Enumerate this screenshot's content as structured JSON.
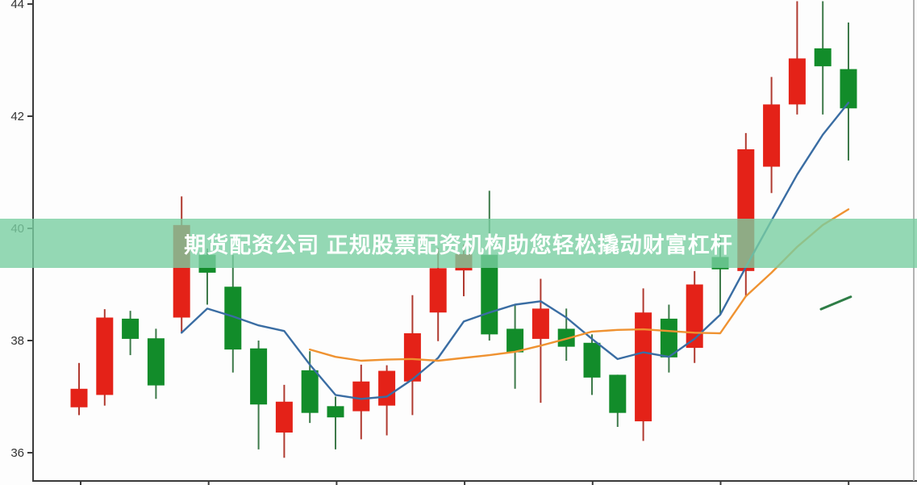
{
  "banner": {
    "text": "期货配资公司 正规股票配资机构助您轻松撬动财富杠杆",
    "bg_color": "rgba(121,206,161,0.8)",
    "text_color": "#ffffff"
  },
  "chart_data": {
    "type": "candlestick",
    "title": "",
    "xlabel": "",
    "ylabel": "",
    "y_axis": {
      "tick_labels": [
        "44",
        "42",
        "40",
        "38",
        "36"
      ],
      "tick_values": [
        44,
        42,
        40,
        38,
        36
      ],
      "range": [
        35.45,
        44.07
      ],
      "grid": false
    },
    "x_axis": {
      "tick_count": 7,
      "labels_visible": false
    },
    "legend": "none",
    "colors": {
      "bullish": "#e42218",
      "bearish": "#128c2a",
      "bullish_wick": "#b03a30",
      "bearish_wick": "#3e7a4a",
      "ma_blue": "#3a6da3",
      "ma_orange": "#ef9231",
      "segment_green": "#2e7d46",
      "axis": "#3a3a3a",
      "right_spine": "#b3b3b3"
    },
    "candles": [
      {
        "o": 36.81,
        "h": 37.6,
        "l": 36.67,
        "c": 37.14,
        "dir": "up"
      },
      {
        "o": 37.03,
        "h": 38.56,
        "l": 36.84,
        "c": 38.41,
        "dir": "up"
      },
      {
        "o": 38.39,
        "h": 38.53,
        "l": 37.74,
        "c": 38.03,
        "dir": "down"
      },
      {
        "o": 38.04,
        "h": 38.21,
        "l": 36.96,
        "c": 37.2,
        "dir": "down"
      },
      {
        "o": 38.41,
        "h": 40.57,
        "l": 38.14,
        "c": 40.06,
        "dir": "up"
      },
      {
        "o": 39.53,
        "h": 39.64,
        "l": 38.64,
        "c": 39.21,
        "dir": "down"
      },
      {
        "o": 38.96,
        "h": 39.53,
        "l": 37.43,
        "c": 37.84,
        "dir": "down"
      },
      {
        "o": 37.86,
        "h": 38.0,
        "l": 36.06,
        "c": 36.86,
        "dir": "down"
      },
      {
        "o": 36.36,
        "h": 37.21,
        "l": 35.91,
        "c": 36.91,
        "dir": "up"
      },
      {
        "o": 37.47,
        "h": 37.81,
        "l": 36.53,
        "c": 36.71,
        "dir": "down"
      },
      {
        "o": 36.83,
        "h": 37.0,
        "l": 36.06,
        "c": 36.63,
        "dir": "down"
      },
      {
        "o": 36.74,
        "h": 37.57,
        "l": 36.24,
        "c": 37.27,
        "dir": "up"
      },
      {
        "o": 36.84,
        "h": 37.56,
        "l": 36.31,
        "c": 37.46,
        "dir": "up"
      },
      {
        "o": 37.27,
        "h": 38.81,
        "l": 36.67,
        "c": 38.13,
        "dir": "up"
      },
      {
        "o": 38.5,
        "h": 39.65,
        "l": 37.99,
        "c": 39.29,
        "dir": "up"
      },
      {
        "o": 39.25,
        "h": 39.71,
        "l": 38.79,
        "c": 39.54,
        "dir": "up"
      },
      {
        "o": 39.53,
        "h": 40.67,
        "l": 38.0,
        "c": 38.11,
        "dir": "down"
      },
      {
        "o": 38.21,
        "h": 38.64,
        "l": 37.14,
        "c": 37.79,
        "dir": "down"
      },
      {
        "o": 38.03,
        "h": 39.1,
        "l": 36.89,
        "c": 38.57,
        "dir": "up"
      },
      {
        "o": 38.21,
        "h": 38.57,
        "l": 37.64,
        "c": 37.89,
        "dir": "down"
      },
      {
        "o": 37.96,
        "h": 38.11,
        "l": 37.03,
        "c": 37.34,
        "dir": "down"
      },
      {
        "o": 37.39,
        "h": 37.39,
        "l": 36.46,
        "c": 36.71,
        "dir": "down"
      },
      {
        "o": 36.56,
        "h": 38.93,
        "l": 36.21,
        "c": 38.5,
        "dir": "up"
      },
      {
        "o": 38.39,
        "h": 38.64,
        "l": 37.43,
        "c": 37.7,
        "dir": "down"
      },
      {
        "o": 37.87,
        "h": 39.24,
        "l": 37.6,
        "c": 39.0,
        "dir": "up"
      },
      {
        "o": 39.49,
        "h": 39.86,
        "l": 38.46,
        "c": 39.27,
        "dir": "down"
      },
      {
        "o": 39.24,
        "h": 41.7,
        "l": 38.79,
        "c": 41.41,
        "dir": "up"
      },
      {
        "o": 41.1,
        "h": 42.7,
        "l": 40.63,
        "c": 42.21,
        "dir": "up"
      },
      {
        "o": 42.21,
        "h": 44.05,
        "l": 42.03,
        "c": 43.03,
        "dir": "up"
      },
      {
        "o": 43.21,
        "h": 44.05,
        "l": 42.03,
        "c": 42.89,
        "dir": "down"
      },
      {
        "o": 42.84,
        "h": 43.67,
        "l": 41.21,
        "c": 42.14,
        "dir": "down"
      }
    ],
    "series": [
      {
        "name": "ma-blue",
        "start_index": 4,
        "values": [
          38.14,
          38.57,
          38.43,
          38.27,
          38.17,
          37.57,
          37.03,
          36.96,
          37.0,
          37.31,
          37.69,
          38.34,
          38.5,
          38.64,
          38.7,
          38.41,
          38.03,
          37.67,
          37.79,
          37.71,
          38.03,
          38.46,
          39.31,
          40.14,
          40.96,
          41.67,
          42.24
        ]
      },
      {
        "name": "ma-orange",
        "start_index": 9,
        "values": [
          37.84,
          37.71,
          37.64,
          37.66,
          37.67,
          37.64,
          37.69,
          37.74,
          37.8,
          37.91,
          38.03,
          38.16,
          38.19,
          38.2,
          38.17,
          38.14,
          38.13,
          38.79,
          39.21,
          39.67,
          40.06,
          40.34
        ]
      },
      {
        "name": "green-segment",
        "points": [
          {
            "index": 28.93,
            "value": 38.56
          },
          {
            "index": 30.09,
            "value": 38.78
          }
        ]
      }
    ]
  }
}
